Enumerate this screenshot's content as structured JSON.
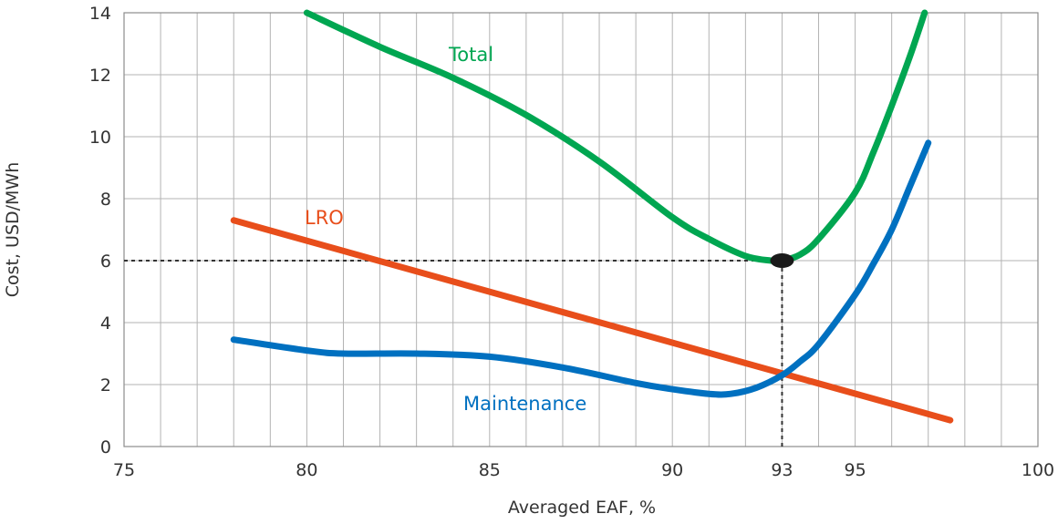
{
  "chart_data": {
    "type": "line",
    "xlabel": "Averaged EAF, %",
    "ylabel": "Cost, USD/MWh",
    "xlim": [
      75,
      100
    ],
    "ylim": [
      0,
      14
    ],
    "x_ticks": [
      75,
      80,
      85,
      90,
      93,
      95,
      100
    ],
    "y_ticks": [
      0,
      2,
      4,
      6,
      8,
      10,
      12,
      14
    ],
    "grid": true,
    "series": [
      {
        "name": "Total",
        "color": "#00a651",
        "points": [
          [
            80,
            14.0
          ],
          [
            82,
            12.9
          ],
          [
            84,
            11.9
          ],
          [
            86,
            10.7
          ],
          [
            88,
            9.2
          ],
          [
            90,
            7.4
          ],
          [
            91,
            6.7
          ],
          [
            92,
            6.15
          ],
          [
            92.7,
            6.0
          ],
          [
            93,
            6.0
          ],
          [
            93.5,
            6.2
          ],
          [
            94,
            6.7
          ],
          [
            95,
            8.2
          ],
          [
            95.5,
            9.5
          ],
          [
            96,
            11.0
          ],
          [
            96.5,
            12.6
          ],
          [
            96.9,
            14.0
          ]
        ]
      },
      {
        "name": "LRO",
        "color": "#e84e1b",
        "points": [
          [
            78,
            7.3
          ],
          [
            97.6,
            0.85
          ]
        ]
      },
      {
        "name": "Maintenance",
        "color": "#0070c0",
        "points": [
          [
            78,
            3.45
          ],
          [
            80,
            3.1
          ],
          [
            81,
            3.0
          ],
          [
            83,
            3.0
          ],
          [
            85,
            2.9
          ],
          [
            87,
            2.55
          ],
          [
            89,
            2.05
          ],
          [
            90,
            1.85
          ],
          [
            91,
            1.7
          ],
          [
            91.6,
            1.7
          ],
          [
            92.3,
            1.9
          ],
          [
            93,
            2.3
          ],
          [
            93.5,
            2.75
          ],
          [
            94,
            3.3
          ],
          [
            95,
            4.9
          ],
          [
            95.5,
            5.9
          ],
          [
            96,
            7.0
          ],
          [
            96.5,
            8.4
          ],
          [
            97,
            9.8
          ]
        ]
      }
    ],
    "optimum": {
      "x": 93,
      "y": 6
    }
  }
}
